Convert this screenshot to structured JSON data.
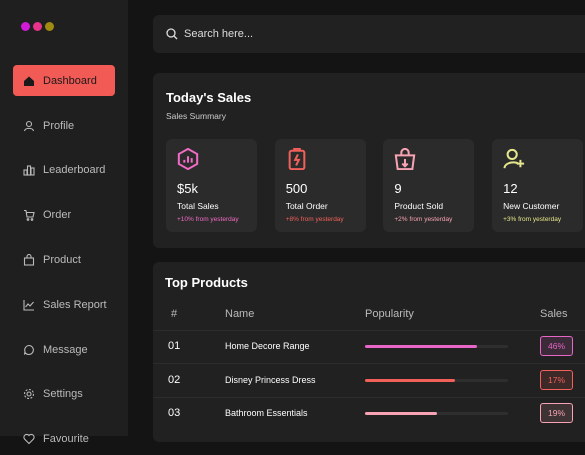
{
  "sidebar": {
    "items": [
      "Dashboard",
      "Profile",
      "Leaderboard",
      "Order",
      "Product",
      "Sales Report",
      "Message",
      "Settings",
      "Favourite"
    ],
    "active": 0
  },
  "search": {
    "placeholder": "Search here..."
  },
  "sales": {
    "title": "Today's Sales",
    "subtitle": "Sales Summary",
    "cards": [
      {
        "value": "$5k",
        "label": "Total Sales",
        "change": "+10% from yesterday",
        "color": "#f06bc4"
      },
      {
        "value": "500",
        "label": "Total Order",
        "change": "+8% from yesterday",
        "color": "#f2605a"
      },
      {
        "value": "9",
        "label": "Product Sold",
        "change": "+2% from yesterday",
        "color": "#f7a3b4"
      },
      {
        "value": "12",
        "label": "New Customer",
        "change": "+3% from yesterday",
        "color": "#e6e68c"
      }
    ]
  },
  "products": {
    "title": "Top Products",
    "columns": [
      "#",
      "Name",
      "Popularity",
      "Sales"
    ],
    "rows": [
      {
        "index": "01",
        "name": "Home Decore Range",
        "popularity": 78,
        "sales": "46%",
        "color": "#e866c8"
      },
      {
        "index": "02",
        "name": "Disney Princess Dress",
        "popularity": 63,
        "sales": "17%",
        "color": "#f2605a"
      },
      {
        "index": "03",
        "name": "Bathroom Essentials",
        "popularity": 50,
        "sales": "19%",
        "color": "#f7a3b4"
      }
    ]
  }
}
